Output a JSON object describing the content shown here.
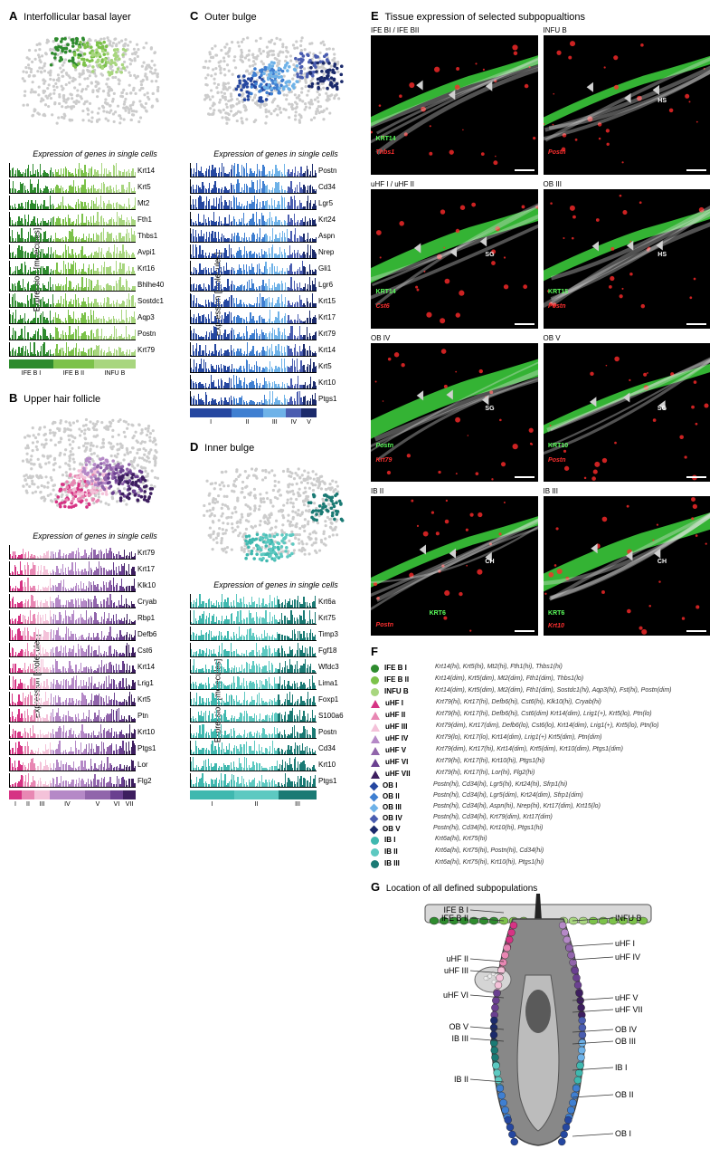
{
  "panels": {
    "A": {
      "label": "A",
      "title": "Interfollicular basal layer"
    },
    "B": {
      "label": "B",
      "title": "Upper hair follicle"
    },
    "C": {
      "label": "C",
      "title": "Outer bulge"
    },
    "D": {
      "label": "D",
      "title": "Inner bulge"
    },
    "E": {
      "label": "E",
      "title": "Tissue expression of selected subpopualtions"
    },
    "F": {
      "label": "F"
    },
    "G": {
      "label": "G",
      "title": "Location of all defined subpopulations"
    }
  },
  "subtitle": "Expression of genes in single cells",
  "ylabel": "Expression [molecules]",
  "panelA": {
    "scatter_colors": [
      "#2e8b2e",
      "#7cc24a",
      "#a8d67f"
    ],
    "bg_color": "#cccccc",
    "genes": [
      {
        "name": "Krt14",
        "ymax": 80
      },
      {
        "name": "Krt5",
        "ymax": 50
      },
      {
        "name": "Mt2",
        "ymax": 6
      },
      {
        "name": "Fth1",
        "ymax": 10
      },
      {
        "name": "Thbs1",
        "ymax": 10
      },
      {
        "name": "Avpi1",
        "ymax": 10
      },
      {
        "name": "Krt16",
        "ymax": 10
      },
      {
        "name": "Bhlhe40",
        "ymax": 2
      },
      {
        "name": "Sostdc1",
        "ymax": 10
      },
      {
        "name": "Aqp3",
        "ymax": 5
      },
      {
        "name": "Postn",
        "ymax": 5
      },
      {
        "name": "Krt79",
        "ymax": 2
      }
    ],
    "groups": [
      {
        "label": "IFE B I",
        "color": "#2e8b2e",
        "width": 0.35
      },
      {
        "label": "IFE B II",
        "color": "#7cc24a",
        "width": 0.32
      },
      {
        "label": "INFU B",
        "color": "#a8d67f",
        "width": 0.33
      }
    ]
  },
  "panelB": {
    "scatter_colors": [
      "#d63384",
      "#e887b3",
      "#f4c2d9",
      "#b589c7",
      "#9165ab",
      "#6a4090",
      "#3d1e5f"
    ],
    "bg_color": "#cccccc",
    "genes": [
      {
        "name": "Krt79",
        "ymax": 100
      },
      {
        "name": "Krt17",
        "ymax": 250
      },
      {
        "name": "Klk10",
        "ymax": 3
      },
      {
        "name": "Cryab",
        "ymax": 2
      },
      {
        "name": "Rbp1",
        "ymax": 10
      },
      {
        "name": "Defb6",
        "ymax": 10
      },
      {
        "name": "Cst6",
        "ymax": 10
      },
      {
        "name": "Krt14",
        "ymax": 20
      },
      {
        "name": "Lrig1",
        "ymax": 5
      },
      {
        "name": "Krt5",
        "ymax": 40
      },
      {
        "name": "Ptn",
        "ymax": 3
      },
      {
        "name": "Krt10",
        "ymax": 300
      },
      {
        "name": "Ptgs1",
        "ymax": 10
      },
      {
        "name": "Lor",
        "ymax": 5
      },
      {
        "name": "Flg2",
        "ymax": 80
      }
    ],
    "groups": [
      {
        "label": "I",
        "color": "#d63384",
        "width": 0.1
      },
      {
        "label": "II",
        "color": "#e887b3",
        "width": 0.1
      },
      {
        "label": "III",
        "color": "#f4c2d9",
        "width": 0.12
      },
      {
        "label": "IV",
        "color": "#b589c7",
        "width": 0.28
      },
      {
        "label": "V",
        "color": "#9165ab",
        "width": 0.2
      },
      {
        "label": "VI",
        "color": "#6a4090",
        "width": 0.1
      },
      {
        "label": "VII",
        "color": "#3d1e5f",
        "width": 0.1
      }
    ]
  },
  "panelC": {
    "scatter_colors": [
      "#2547a0",
      "#3f7fd1",
      "#6eb2e8",
      "#4a5db0",
      "#1b2a6b"
    ],
    "bg_color": "#cccccc",
    "genes": [
      {
        "name": "Postn",
        "ymax": 10
      },
      {
        "name": "Cd34",
        "ymax": 10
      },
      {
        "name": "Lgr5",
        "ymax": 5
      },
      {
        "name": "Krt24",
        "ymax": 2
      },
      {
        "name": "Aspn",
        "ymax": 3
      },
      {
        "name": "Nrep",
        "ymax": 3
      },
      {
        "name": "Gli1",
        "ymax": 1.5
      },
      {
        "name": "Lgr6",
        "ymax": 1
      },
      {
        "name": "Krt15",
        "ymax": 10
      },
      {
        "name": "Krt17",
        "ymax": 40
      },
      {
        "name": "Krt79",
        "ymax": 40
      },
      {
        "name": "Krt14",
        "ymax": 40
      },
      {
        "name": "Krt5",
        "ymax": 30
      },
      {
        "name": "Krt10",
        "ymax": 300
      },
      {
        "name": "Ptgs1",
        "ymax": 4
      }
    ],
    "groups": [
      {
        "label": "I",
        "color": "#2547a0",
        "width": 0.33
      },
      {
        "label": "II",
        "color": "#3f7fd1",
        "width": 0.25
      },
      {
        "label": "III",
        "color": "#6eb2e8",
        "width": 0.18
      },
      {
        "label": "IV",
        "color": "#4a5db0",
        "width": 0.12
      },
      {
        "label": "V",
        "color": "#1b2a6b",
        "width": 0.12
      }
    ]
  },
  "panelD": {
    "scatter_colors": [
      "#3fb8af",
      "#5dc9c1",
      "#1a7a74"
    ],
    "bg_color": "#cccccc",
    "genes": [
      {
        "name": "Krt6a",
        "ymax": 30
      },
      {
        "name": "Krt75",
        "ymax": 20
      },
      {
        "name": "Timp3",
        "ymax": 5
      },
      {
        "name": "Fgf18",
        "ymax": 3
      },
      {
        "name": "Wfdc3",
        "ymax": 5
      },
      {
        "name": "Lima1",
        "ymax": 2
      },
      {
        "name": "Foxp1",
        "ymax": 2
      },
      {
        "name": "S100a6",
        "ymax": 2
      },
      {
        "name": "Postn",
        "ymax": 5
      },
      {
        "name": "Cd34",
        "ymax": 5
      },
      {
        "name": "Krt10",
        "ymax": 200
      },
      {
        "name": "Ptgs1",
        "ymax": 10
      }
    ],
    "groups": [
      {
        "label": "I",
        "color": "#3fb8af",
        "width": 0.35
      },
      {
        "label": "II",
        "color": "#5dc9c1",
        "width": 0.35
      },
      {
        "label": "III",
        "color": "#1a7a74",
        "width": 0.3
      }
    ]
  },
  "panelE": {
    "images": [
      {
        "title": "IFE BI / IFE BII",
        "markers": [
          {
            "t": "KRT14",
            "c": "#5cff5c",
            "x": 3,
            "y": 72
          },
          {
            "t": "Thbs1",
            "c": "#ff3030",
            "x": 3,
            "y": 82,
            "i": true
          }
        ],
        "hs": ""
      },
      {
        "title": "INFU B",
        "markers": [
          {
            "t": "Postn",
            "c": "#ff3030",
            "x": 3,
            "y": 82,
            "i": true
          }
        ],
        "hs": "HS"
      },
      {
        "title": "uHF I / uHF II",
        "markers": [
          {
            "t": "KRT14",
            "c": "#5cff5c",
            "x": 3,
            "y": 72
          },
          {
            "t": "Cst6",
            "c": "#ff3030",
            "x": 3,
            "y": 82,
            "i": true
          }
        ],
        "hs": "SG"
      },
      {
        "title": "OB III",
        "markers": [
          {
            "t": "KRT15",
            "c": "#5cff5c",
            "x": 3,
            "y": 72
          },
          {
            "t": "Postn",
            "c": "#ff3030",
            "x": 3,
            "y": 82,
            "i": true
          }
        ],
        "hs": "HS"
      },
      {
        "title": "OB IV",
        "markers": [
          {
            "t": "Postn",
            "c": "#5cff5c",
            "x": 3,
            "y": 72,
            "i": true
          },
          {
            "t": "Krt79",
            "c": "#ff3030",
            "x": 3,
            "y": 82,
            "i": true
          }
        ],
        "hs": "SG"
      },
      {
        "title": "OB V",
        "markers": [
          {
            "t": "KRT10",
            "c": "#5cff5c",
            "x": 3,
            "y": 72
          },
          {
            "t": "Postn",
            "c": "#ff3030",
            "x": 3,
            "y": 82,
            "i": true
          }
        ],
        "hs": "SG"
      },
      {
        "title": "IB II",
        "markers": [
          {
            "t": "KRT6",
            "c": "#5cff5c",
            "x": 35,
            "y": 82
          },
          {
            "t": "Postn",
            "c": "#ff3030",
            "x": 3,
            "y": 90,
            "i": true
          }
        ],
        "hs": "CH"
      },
      {
        "title": "IB III",
        "markers": [
          {
            "t": "KRT6",
            "c": "#5cff5c",
            "x": 3,
            "y": 82
          },
          {
            "t": "Krt10",
            "c": "#ff3030",
            "x": 3,
            "y": 91,
            "i": true
          }
        ],
        "hs": "CH"
      }
    ]
  },
  "panelF": {
    "items": [
      {
        "shape": "circle",
        "color": "#2e8b2e",
        "name": "IFE B I",
        "desc": "Krt14(hi), Krt5(hi), Mt2(hi), Fth1(hi), Thbs1(hi)"
      },
      {
        "shape": "circle",
        "color": "#7cc24a",
        "name": "IFE B II",
        "desc": "Krt14(dim), Krt5(dim), Mt2(dim), Fth1(dim), Thbs1(lo)"
      },
      {
        "shape": "circle",
        "color": "#a8d67f",
        "name": "INFU B",
        "desc": "Krt14(dim), Krt5(dim), Mt2(dim), Fth1(dim), Sostdc1(hi), Aqp3(hi), Fst(hi), Postn(dim)"
      },
      {
        "shape": "triangle",
        "color": "#d63384",
        "name": "uHF I",
        "desc": "Krt79(hi), Krt17(hi), Defb6(hi), Cst6(hi), Klk10(hi), Cryab(hi)"
      },
      {
        "shape": "triangle",
        "color": "#e887b3",
        "name": "uHF II",
        "desc": "Krt79(hi), Krt17(hi), Defb6(hi), Cst6(dim) Krt14(dim), Lrig1(+), Krt5(lo), Ptn(lo)"
      },
      {
        "shape": "triangle",
        "color": "#f4c2d9",
        "name": "uHF III",
        "desc": "Krt79(dim), Krt17(dim), Defb6(lo), Cst6(lo), Krt14(dim), Lrig1(+), Krt5(lo), Ptn(lo)"
      },
      {
        "shape": "triangle",
        "color": "#b589c7",
        "name": "uHF IV",
        "desc": "Krt79(lo), Krt17(lo), Krt14(dim), Lrig1(+) Krt5(dim), Ptn(dim)"
      },
      {
        "shape": "triangle",
        "color": "#9165ab",
        "name": "uHF V",
        "desc": "Krt79(dim), Krt17(hi), Krt14(dim), Krt5(dim), Krt10(dim), Ptgs1(dim)"
      },
      {
        "shape": "triangle",
        "color": "#6a4090",
        "name": "uHF VI",
        "desc": "Krt79(hi), Krt17(hi), Krt10(hi), Ptgs1(hi)"
      },
      {
        "shape": "triangle",
        "color": "#3d1e5f",
        "name": "uHF VII",
        "desc": "Krt79(hi), Krt17(hi), Lor(hi), Flg2(hi)"
      },
      {
        "shape": "diamond",
        "color": "#2547a0",
        "name": "OB I",
        "desc": "Postn(hi), Cd34(hi), Lgr5(hi), Krt24(hi), Sfrp1(hi)"
      },
      {
        "shape": "diamond",
        "color": "#3f7fd1",
        "name": "OB II",
        "desc": "Postn(hi), Cd34(hi), Lgr5(dim), Krt24(dim), Sfrp1(dim)"
      },
      {
        "shape": "diamond",
        "color": "#6eb2e8",
        "name": "OB III",
        "desc": "Postn(hi), Cd34(hi), Aspn(hi), Nrep(hi), Krt17(dim), Krt15(lo)"
      },
      {
        "shape": "diamond",
        "color": "#4a5db0",
        "name": "OB IV",
        "desc": "Postn(hi), Cd34(hi), Krt79(dim), Krt17(dim)"
      },
      {
        "shape": "diamond",
        "color": "#1b2a6b",
        "name": "OB V",
        "desc": "Postn(hi), Cd34(hi), Krt10(hi), Ptgs1(hi)"
      },
      {
        "shape": "circle",
        "color": "#3fb8af",
        "name": "IB I",
        "desc": "Krt6a(hi), Krt75(hi)"
      },
      {
        "shape": "circle",
        "color": "#5dc9c1",
        "name": "IB II",
        "desc": "Krt6a(hi), Krt75(hi), Postn(hi), Cd34(hi)"
      },
      {
        "shape": "circle",
        "color": "#1a7a74",
        "name": "IB III",
        "desc": "Krt6a(hi), Krt75(hi), Krt10(hi), Ptgs1(hi)"
      }
    ]
  },
  "panelG": {
    "labels_left": [
      "IFE B I",
      "IFE B II",
      "uHF II",
      "uHF III",
      "uHF VI",
      "OB V",
      "IB III",
      "IB II"
    ],
    "labels_right": [
      "INFU B",
      "uHF I",
      "uHF IV",
      "uHF V",
      "uHF VII",
      "OB IV",
      "OB III",
      "IB I",
      "OB II",
      "OB I"
    ]
  }
}
